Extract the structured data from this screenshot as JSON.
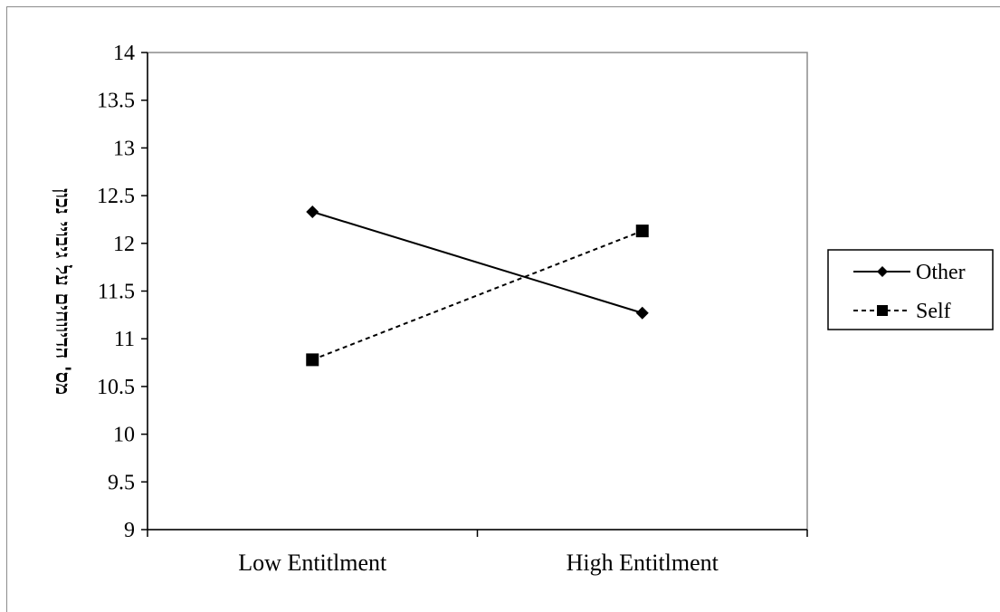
{
  "chart_data": {
    "type": "line",
    "title": "",
    "xlabel": "",
    "ylabel": "מס' הדיווחים על גיבויי נכון",
    "categories": [
      "Low Entitlment",
      "High Entitlment"
    ],
    "ylim": [
      9,
      14
    ],
    "yticks": [
      "9",
      "9.5",
      "10",
      "10.5",
      "11",
      "11.5",
      "12",
      "12.5",
      "13",
      "13.5",
      "14"
    ],
    "grid": false,
    "legend_position": "right",
    "series": [
      {
        "name": "Other",
        "values": [
          12.33,
          11.27
        ],
        "marker": "diamond",
        "line_style": "solid",
        "color": "#000000"
      },
      {
        "name": "Self",
        "values": [
          10.78,
          12.13
        ],
        "marker": "square",
        "line_style": "dashed",
        "color": "#000000"
      }
    ]
  }
}
